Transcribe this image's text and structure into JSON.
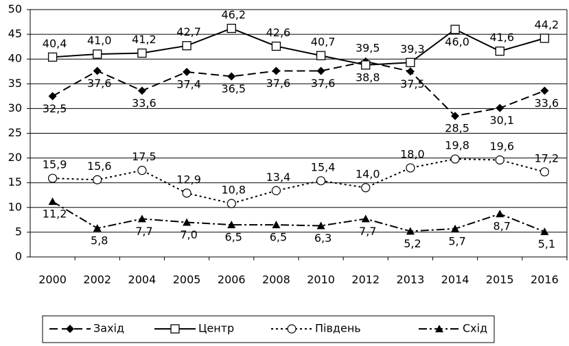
{
  "chart_data": {
    "type": "line",
    "categories": [
      "2000",
      "2002",
      "2004",
      "2005",
      "2006",
      "2008",
      "2010",
      "2012",
      "2013",
      "2014",
      "2015",
      "2016"
    ],
    "series": [
      {
        "name": "Захід",
        "color": "#000000",
        "marker": "diamond",
        "dash": "dashed",
        "values": [
          32.5,
          37.6,
          33.6,
          37.4,
          36.5,
          37.6,
          37.6,
          39.5,
          37.5,
          28.5,
          30.1,
          33.6
        ],
        "value_labels": [
          "32,5",
          "37,6",
          "33,6",
          "37,4",
          "36,5",
          "37,6",
          "37,6",
          "39,5",
          "37,5",
          "28,5",
          "30,1",
          "33,6"
        ]
      },
      {
        "name": "Центр",
        "color": "#000000",
        "marker": "square",
        "dash": "solid",
        "values": [
          40.4,
          41.0,
          41.2,
          42.7,
          46.2,
          42.6,
          40.7,
          38.8,
          39.3,
          46.0,
          41.6,
          44.2
        ],
        "value_labels": [
          "40,4",
          "41,0",
          "41,2",
          "42,7",
          "46,2",
          "42,6",
          "40,7",
          "38,8",
          "39,3",
          "46,0",
          "41,6",
          "44,2"
        ]
      },
      {
        "name": "Південь",
        "color": "#000000",
        "marker": "circle",
        "dash": "dotted",
        "values": [
          15.9,
          15.6,
          17.5,
          12.9,
          10.8,
          13.4,
          15.4,
          14.0,
          18.0,
          19.8,
          19.6,
          17.2
        ],
        "value_labels": [
          "15,9",
          "15,6",
          "17,5",
          "12,9",
          "10,8",
          "13,4",
          "15,4",
          "14,0",
          "18,0",
          "19,8",
          "19,6",
          "17,2"
        ]
      },
      {
        "name": "Схід",
        "color": "#000000",
        "marker": "triangle",
        "dash": "dashdot",
        "values": [
          11.2,
          5.8,
          7.7,
          7.0,
          6.5,
          6.5,
          6.3,
          7.7,
          5.2,
          5.7,
          8.7,
          5.1
        ],
        "value_labels": [
          "11,2",
          "5,8",
          "7,7",
          "7,0",
          "6,5",
          "6,5",
          "6,3",
          "7,7",
          "5,2",
          "5,7",
          "8,7",
          "5,1"
        ]
      }
    ],
    "ylim": [
      0,
      50
    ],
    "yticks": [
      0,
      5,
      10,
      15,
      20,
      25,
      30,
      35,
      40,
      45,
      50
    ],
    "grid": true,
    "legend": "bottom"
  }
}
